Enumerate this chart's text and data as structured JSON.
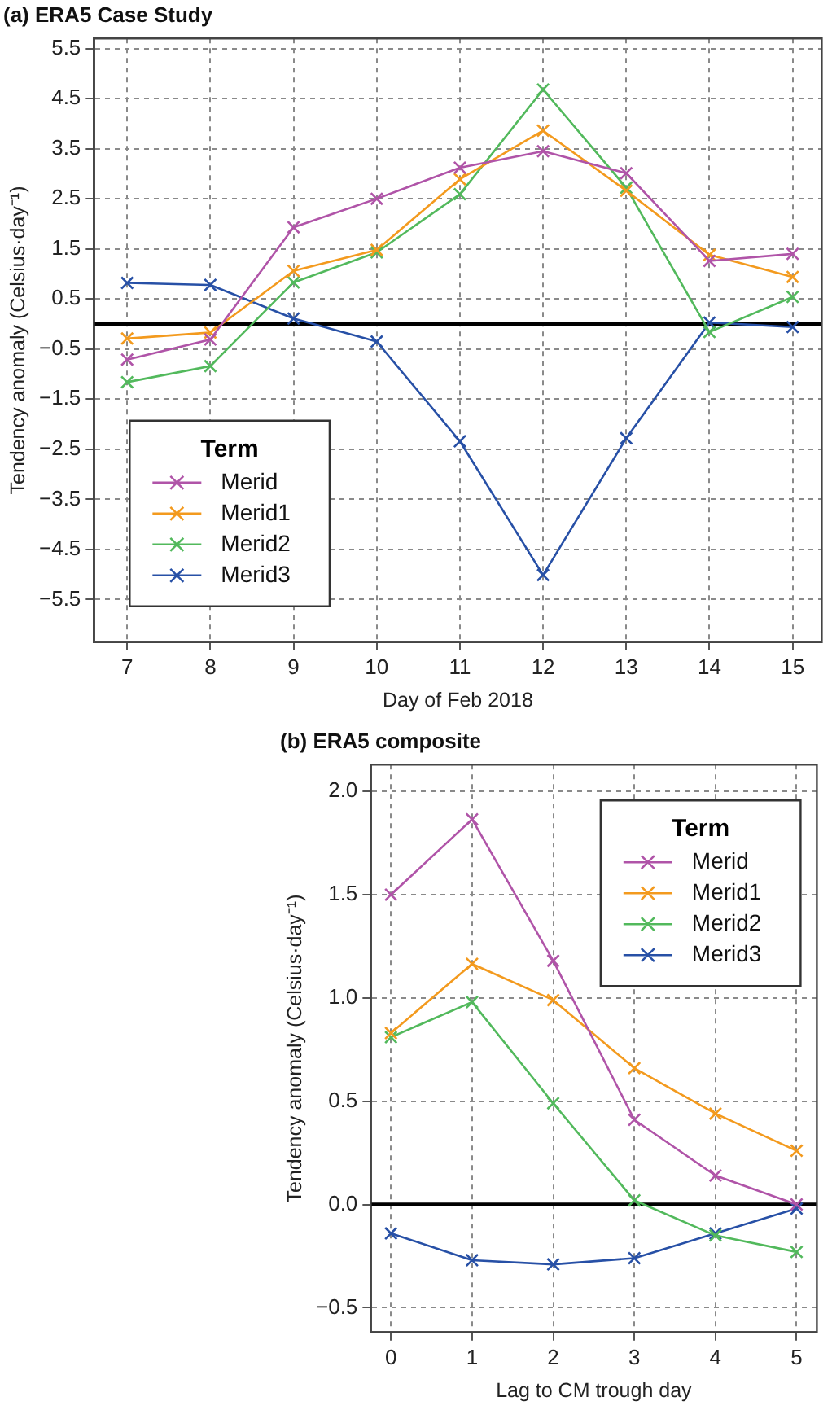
{
  "chart_data": [
    {
      "type": "line",
      "title": "(a) ERA5 Case Study",
      "xlabel": "Day of Feb 2018",
      "ylabel": "Tendency anomaly (Celsius·day⁻¹)",
      "legend_title": "Term",
      "x": [
        7,
        8,
        9,
        10,
        11,
        12,
        13,
        14,
        15
      ],
      "xlim": [
        6.6,
        15.35
      ],
      "xticks": [
        7,
        8,
        9,
        10,
        11,
        12,
        13,
        14,
        15
      ],
      "ylim": [
        -6.35,
        5.7
      ],
      "yticks": [
        {
          "value": -5.5,
          "label": "−5.5"
        },
        {
          "value": -4.5,
          "label": "−4.5"
        },
        {
          "value": -3.5,
          "label": "−3.5"
        },
        {
          "value": -2.5,
          "label": "−2.5"
        },
        {
          "value": -1.5,
          "label": "−1.5"
        },
        {
          "value": -0.5,
          "label": "−0.5"
        },
        0.5,
        1.5,
        2.5,
        3.5,
        4.5,
        5.5
      ],
      "series": [
        {
          "name": "Merid",
          "color": "#b054a8",
          "values": [
            -0.71,
            -0.31,
            1.93,
            2.5,
            3.12,
            3.45,
            3.01,
            1.26,
            1.4
          ]
        },
        {
          "name": "Merid1",
          "color": "#f39a1e",
          "values": [
            -0.29,
            -0.17,
            1.06,
            1.48,
            2.89,
            3.86,
            2.66,
            1.38,
            0.94
          ]
        },
        {
          "name": "Merid2",
          "color": "#52b95c",
          "values": [
            -1.16,
            -0.84,
            0.83,
            1.43,
            2.59,
            4.68,
            2.72,
            -0.16,
            0.54
          ]
        },
        {
          "name": "Merid3",
          "color": "#2750a6",
          "values": [
            0.82,
            0.78,
            0.11,
            -0.35,
            -2.34,
            -5.01,
            -2.28,
            0.03,
            -0.06
          ]
        }
      ],
      "ref_lines": [
        {
          "axis": "y",
          "value": 0,
          "color": "#000000"
        }
      ],
      "grid": true,
      "legend": "bottom left",
      "marker": "cross",
      "line_style": "solid"
    },
    {
      "type": "line",
      "title": "(b) ERA5 composite",
      "xlabel": "Lag to CM trough day",
      "ylabel": "Tendency anomaly (Celsius·day⁻¹)",
      "legend_title": "Term",
      "x": [
        0,
        1,
        2,
        3,
        4,
        5
      ],
      "xlim": [
        -0.25,
        5.25
      ],
      "xticks": [
        0,
        1,
        2,
        3,
        4,
        5
      ],
      "ylim": [
        -0.62,
        2.13
      ],
      "yticks": [
        {
          "value": -0.5,
          "label": "−0.5"
        },
        {
          "value": 0,
          "label": "0.0"
        },
        0.5,
        {
          "value": 1,
          "label": "1.0"
        },
        1.5,
        {
          "value": 2,
          "label": "2.0"
        }
      ],
      "series": [
        {
          "name": "Merid",
          "color": "#b054a8",
          "values": [
            1.5,
            1.865,
            1.18,
            0.41,
            0.14,
            0.0
          ]
        },
        {
          "name": "Merid1",
          "color": "#f39a1e",
          "values": [
            0.83,
            1.165,
            0.99,
            0.66,
            0.44,
            0.26
          ]
        },
        {
          "name": "Merid2",
          "color": "#52b95c",
          "values": [
            0.81,
            0.98,
            0.49,
            0.02,
            -0.15,
            -0.23
          ]
        },
        {
          "name": "Merid3",
          "color": "#2750a6",
          "values": [
            -0.14,
            -0.27,
            -0.29,
            -0.26,
            -0.14,
            -0.02
          ]
        }
      ],
      "ref_lines": [
        {
          "axis": "y",
          "value": 0,
          "color": "#000000"
        }
      ],
      "grid": true,
      "legend": "top right",
      "marker": "cross",
      "line_style": "solid"
    }
  ]
}
